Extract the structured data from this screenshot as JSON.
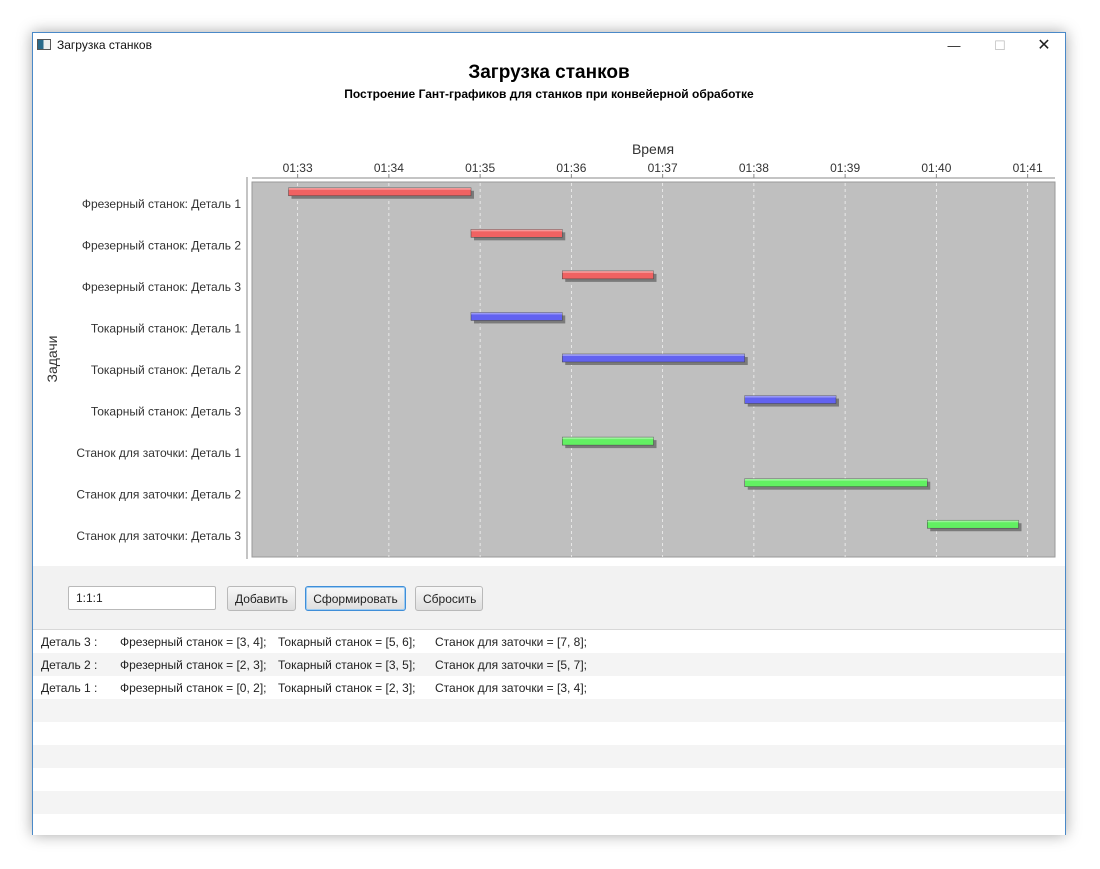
{
  "window": {
    "title": "Загрузка станков",
    "controls": {
      "minimize": "—",
      "maximize": "☐",
      "close": "✕"
    }
  },
  "chart": {
    "title": "Загрузка станков",
    "subtitle": "Построение Гант-графиков для станков при конвейерной обработке"
  },
  "chart_data": {
    "type": "gantt",
    "title": "Загрузка станков",
    "subtitle": "Построение Гант-графиков для станков при конвейерной обработке",
    "xlabel": "Время",
    "ylabel": "Задачи",
    "time_ticks": [
      "01:33",
      "01:34",
      "01:35",
      "01:36",
      "01:37",
      "01:38",
      "01:39",
      "01:40",
      "01:41"
    ],
    "x_range": [
      "01:32.5",
      "01:41.3"
    ],
    "grid": true,
    "colors": {
      "Фрезерный станок": "#f06262",
      "Токарный станок": "#6262f0",
      "Станок для заточки": "#62f062"
    },
    "tasks": [
      {
        "label": "Фрезерный станок: Деталь 1",
        "start": "01:32.9",
        "end": "01:34.9",
        "color": "#f06262"
      },
      {
        "label": "Фрезерный станок: Деталь 2",
        "start": "01:34.9",
        "end": "01:35.9",
        "color": "#f06262"
      },
      {
        "label": "Фрезерный станок: Деталь 3",
        "start": "01:35.9",
        "end": "01:36.9",
        "color": "#f06262"
      },
      {
        "label": "Токарный станок: Деталь 1",
        "start": "01:34.9",
        "end": "01:35.9",
        "color": "#6262f0"
      },
      {
        "label": "Токарный станок: Деталь 2",
        "start": "01:35.9",
        "end": "01:37.9",
        "color": "#6262f0"
      },
      {
        "label": "Токарный станок: Деталь 3",
        "start": "01:37.9",
        "end": "01:38.9",
        "color": "#6262f0"
      },
      {
        "label": "Станок для заточки: Деталь 1",
        "start": "01:35.9",
        "end": "01:36.9",
        "color": "#62f062"
      },
      {
        "label": "Станок для заточки: Деталь 2",
        "start": "01:37.9",
        "end": "01:39.9",
        "color": "#62f062"
      },
      {
        "label": "Станок для заточки: Деталь 3",
        "start": "01:39.9",
        "end": "01:40.9",
        "color": "#62f062"
      }
    ]
  },
  "controls": {
    "input_value": "1:1:1",
    "add_label": "Добавить",
    "form_label": "Сформировать",
    "reset_label": "Сбросить"
  },
  "results": [
    {
      "part": "Деталь 3 :",
      "mill": "Фрезерный станок = [3, 4];",
      "lathe": "Токарный станок = [5, 6];",
      "sharpen": "Станок для заточки = [7, 8];"
    },
    {
      "part": "Деталь 2 :",
      "mill": "Фрезерный станок = [2, 3];",
      "lathe": "Токарный станок = [3, 5];",
      "sharpen": "Станок для заточки = [5, 7];"
    },
    {
      "part": "Деталь 1 :",
      "mill": "Фрезерный станок = [0, 2];",
      "lathe": "Токарный станок = [2, 3];",
      "sharpen": "Станок для заточки = [3, 4];"
    }
  ],
  "empty_rows": 6
}
